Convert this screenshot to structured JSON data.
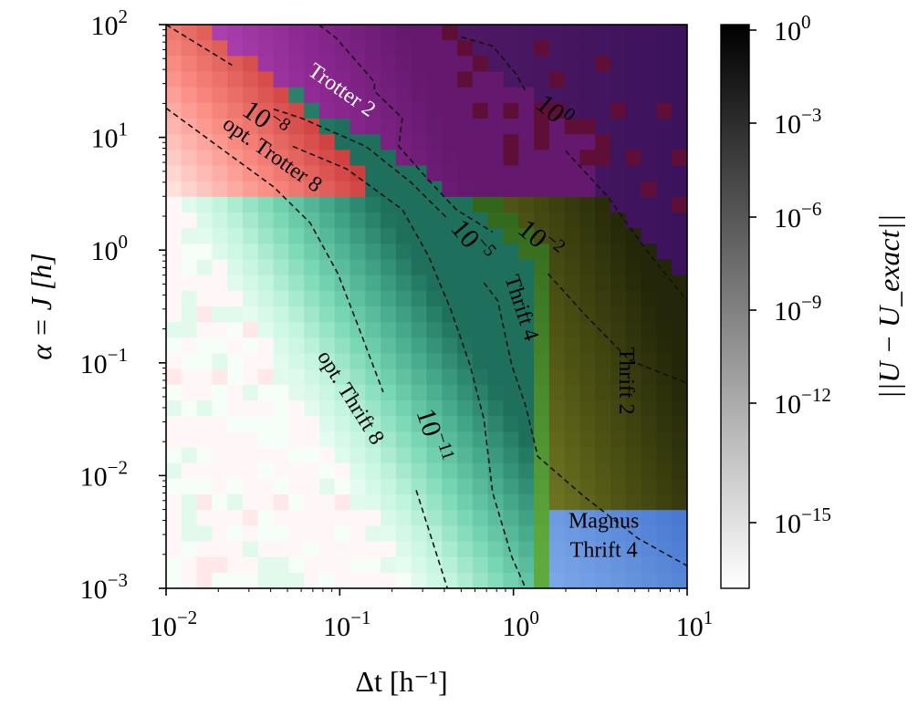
{
  "chart_data": {
    "type": "heatmap",
    "xlabel": "Δt [h⁻¹]",
    "ylabel": "α = J [h]",
    "colorbar_label": "||U − U_exact||",
    "x_scale": "log",
    "y_scale": "log",
    "xlim_log10": [
      -2,
      1
    ],
    "ylim_log10": [
      -3,
      2
    ],
    "x_ticks": [
      {
        "exp": -2,
        "label": "10",
        "sup": "−2"
      },
      {
        "exp": -1,
        "label": "10",
        "sup": "−1"
      },
      {
        "exp": 0,
        "label": "10",
        "sup": "0"
      },
      {
        "exp": 1,
        "label": "10",
        "sup": "1"
      }
    ],
    "y_ticks": [
      {
        "exp": 2,
        "label": "10",
        "sup": "2"
      },
      {
        "exp": 1,
        "label": "10",
        "sup": "1"
      },
      {
        "exp": 0,
        "label": "10",
        "sup": "0"
      },
      {
        "exp": -1,
        "label": "10",
        "sup": "−1"
      },
      {
        "exp": -2,
        "label": "10",
        "sup": "−2"
      },
      {
        "exp": -3,
        "label": "10",
        "sup": "−3"
      }
    ],
    "colorbar_ticks": [
      {
        "exp": 0,
        "label": "10",
        "sup": "0"
      },
      {
        "exp": -3,
        "label": "10",
        "sup": "−3"
      },
      {
        "exp": -6,
        "label": "10",
        "sup": "−6"
      },
      {
        "exp": -9,
        "label": "10",
        "sup": "−9"
      },
      {
        "exp": -12,
        "label": "10",
        "sup": "−12"
      },
      {
        "exp": -15,
        "label": "10",
        "sup": "−15"
      }
    ],
    "regions": [
      {
        "name": "Trotter 2",
        "color": "#8a2a8a",
        "label_at": [
          -1.01,
          1.37
        ]
      },
      {
        "name": "opt. Trotter 8",
        "color": "#e86060",
        "label_at": [
          -1.41,
          0.8
        ]
      },
      {
        "name": "Thrift 4",
        "color": "#3a8a2a",
        "label_at": [
          0.01,
          -0.53
        ]
      },
      {
        "name": "Thrift 2",
        "color": "#6b7420",
        "label_at": [
          0.61,
          -1.16
        ]
      },
      {
        "name": "opt. Thrift 8",
        "color": "#5ec9a3",
        "label_at": [
          -0.97,
          -1.34
        ]
      },
      {
        "name": "Magnus",
        "color": "#5a8ad8",
        "label_at": [
          0.52,
          -2.46
        ]
      },
      {
        "name": "Thrift 4",
        "color": "#5a8ad8",
        "label_at": [
          0.52,
          -2.72
        ]
      }
    ],
    "contours": [
      {
        "level_label": "10",
        "level_sup": "0",
        "label_at": [
          0.2,
          1.17
        ],
        "segments": [
          [
            [
              -0.3,
              1.89
            ],
            [
              -0.12,
              1.81
            ],
            [
              0.01,
              1.57
            ],
            [
              0.07,
              1.41
            ]
          ],
          [
            [
              0.3,
              0.88
            ],
            [
              0.54,
              0.48
            ],
            [
              0.77,
              -0.01
            ],
            [
              1.0,
              -0.45
            ]
          ]
        ]
      },
      {
        "level_label": "10",
        "level_sup": "−2",
        "label_at": [
          0.12,
          0.03
        ],
        "segments": [
          [
            [
              -1.12,
              2.0
            ],
            [
              -1.02,
              1.88
            ],
            [
              -0.8,
              1.49
            ],
            [
              -0.8,
              1.41
            ],
            [
              -0.64,
              1.17
            ],
            [
              -0.66,
              0.92
            ],
            [
              -0.5,
              0.64
            ],
            [
              -0.33,
              0.36
            ],
            [
              -0.12,
              0.16
            ]
          ],
          [
            [
              0.2,
              -0.21
            ],
            [
              0.41,
              -0.57
            ],
            [
              0.67,
              -0.98
            ],
            [
              1.0,
              -1.18
            ]
          ]
        ]
      },
      {
        "level_label": "10",
        "level_sup": "−5",
        "label_at": [
          -0.28,
          0.03
        ],
        "segments": [
          [
            [
              -1.38,
              1.25
            ],
            [
              -1.22,
              1.17
            ],
            [
              -0.85,
              0.92
            ],
            [
              -0.59,
              0.6
            ],
            [
              -0.38,
              0.28
            ]
          ],
          [
            [
              -0.17,
              -0.29
            ],
            [
              -0.09,
              -0.45
            ],
            [
              -0.01,
              -1.02
            ],
            [
              0.07,
              -1.38
            ],
            [
              0.14,
              -1.83
            ],
            [
              0.41,
              -2.19
            ],
            [
              0.72,
              -2.56
            ],
            [
              1.0,
              -2.8
            ]
          ]
        ]
      },
      {
        "level_label": "10",
        "level_sup": "−8",
        "label_at": [
          -1.46,
          1.09
        ],
        "segments": [
          [
            [
              -2.0,
              2.0
            ],
            [
              -1.62,
              1.64
            ]
          ],
          [
            [
              -1.27,
              0.92
            ],
            [
              -0.96,
              0.72
            ],
            [
              -0.64,
              0.36
            ],
            [
              -0.49,
              -0.05
            ],
            [
              -0.36,
              -0.53
            ],
            [
              -0.25,
              -1.02
            ],
            [
              -0.17,
              -1.5
            ],
            [
              -0.12,
              -2.15
            ],
            [
              -0.01,
              -2.72
            ],
            [
              0.07,
              -3.0
            ]
          ]
        ]
      },
      {
        "level_label": "10",
        "level_sup": "−11",
        "label_at": [
          -0.51,
          -1.67
        ],
        "segments": [
          [
            [
              -2.0,
              1.26
            ],
            [
              -1.7,
              0.92
            ],
            [
              -1.38,
              0.56
            ],
            [
              -1.17,
              0.24
            ],
            [
              -1.01,
              -0.21
            ],
            [
              -0.91,
              -0.61
            ],
            [
              -0.75,
              -1.26
            ]
          ],
          [
            [
              -0.56,
              -2.13
            ],
            [
              -0.38,
              -3.0
            ]
          ]
        ]
      }
    ]
  }
}
